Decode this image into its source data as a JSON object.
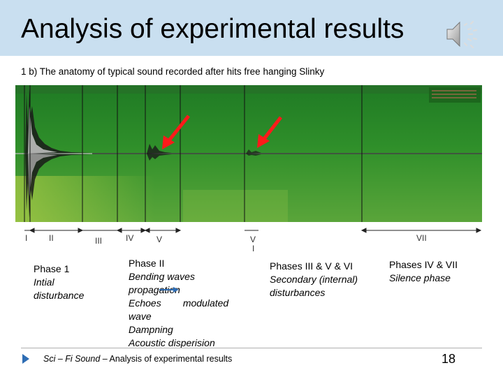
{
  "title": "Analysis of experimental results",
  "subtitle": "1 b) The anatomy of typical sound recorded after hits free hanging Slinky",
  "phase_markers": [
    "I",
    "II",
    "III",
    "IV",
    "V",
    "V",
    "I",
    "VII"
  ],
  "blocks": [
    {
      "heading": "Phase 1",
      "lines": [
        "Intial",
        "disturbance"
      ]
    },
    {
      "heading": "Phase II",
      "lines": [
        "Bending waves",
        "propagation",
        "Echoes        modulated",
        "wave",
        "Dampning",
        "Acoustic disperision"
      ]
    },
    {
      "heading": "Phases III & V & VI",
      "lines": [
        "Secondary (internal)",
        "disturbances"
      ]
    },
    {
      "heading": "Phases IV & VII",
      "lines": [
        "Silence phase"
      ]
    }
  ],
  "footer": {
    "italic": "Sci – Fi Sound",
    "rest": " – Analysis of experimental results"
  },
  "page_number": "18",
  "icons": [
    "speaker-icon",
    "red-arrow-icon",
    "footer-bullet-icon"
  ],
  "colors": {
    "title_bg": "#c9dff0",
    "spectrogram": "#2f8f2a",
    "arrow": "#ff1a1a",
    "bullet": "#2e6db4"
  }
}
